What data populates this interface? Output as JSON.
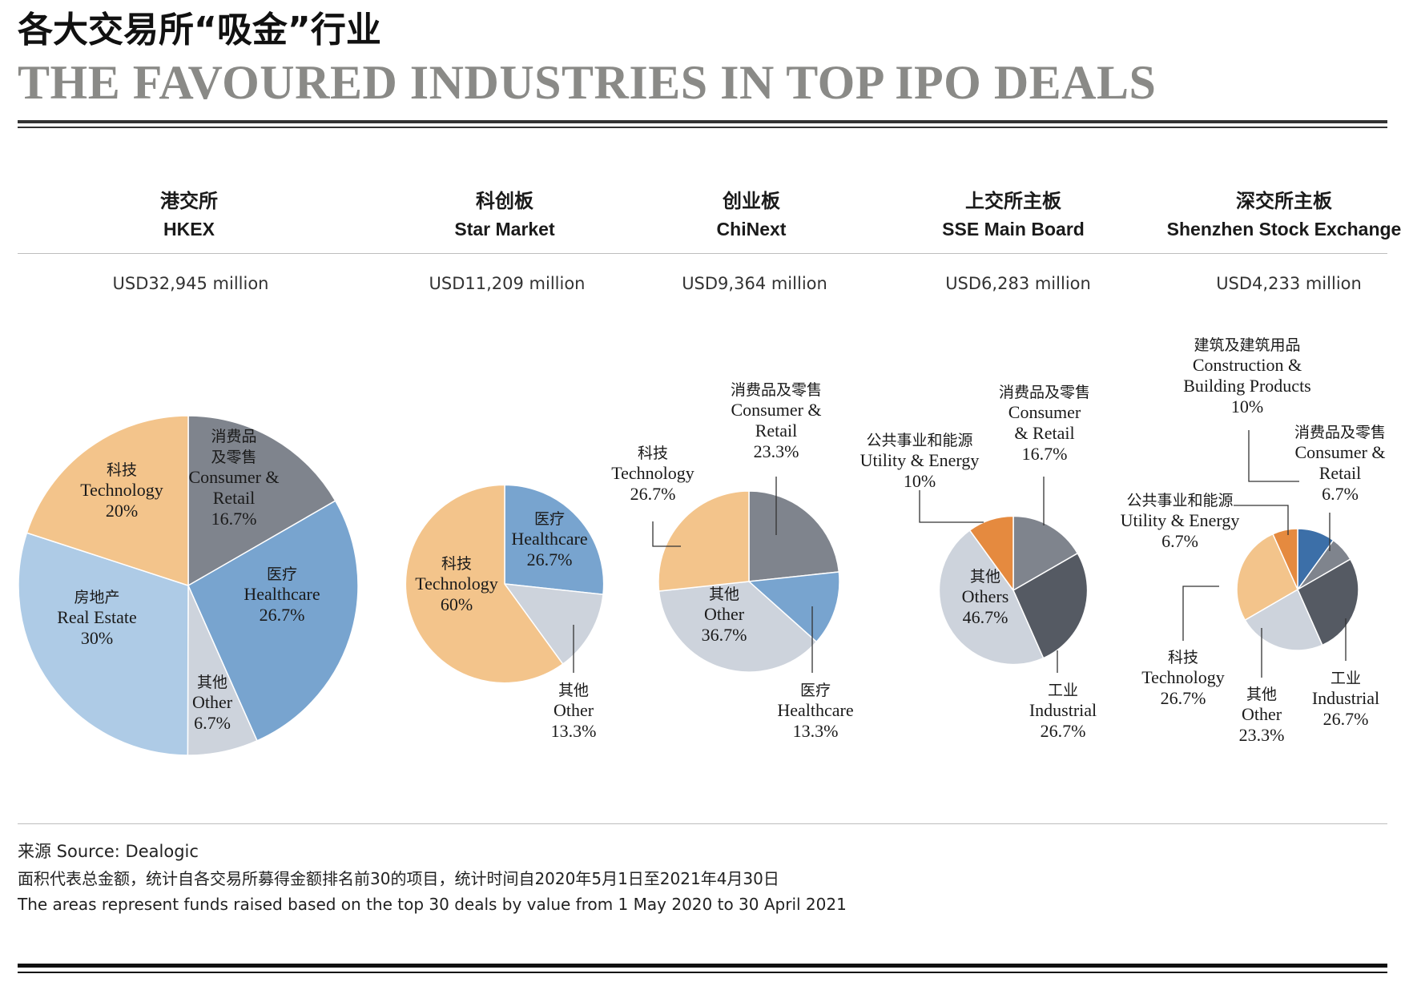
{
  "title_cn": "各大交易所“吸金”行业",
  "title_en": "THE FAVOURED INDUSTRIES IN TOP IPO DEALS",
  "colors": {
    "consumer_retail": "#7f848d",
    "healthcare": "#78a4cf",
    "other": "#cdd3dc",
    "real_estate": "#aecbe6",
    "technology": "#f3c48b",
    "industrial": "#555a63",
    "utility_energy": "#e58a3f",
    "construction": "#3c6fa8"
  },
  "chart_data": [
    {
      "type": "pie",
      "exchange_cn": "港交所",
      "exchange_en": "HKEX",
      "total": "USD32,945 million",
      "total_value_usd_million": 32945,
      "slices": [
        {
          "key": "consumer_retail",
          "name_cn": "消费品及零售",
          "name_en": "Consumer & Retail",
          "label": "16.7%",
          "value": 16.7
        },
        {
          "key": "healthcare",
          "name_cn": "医疗",
          "name_en": "Healthcare",
          "label": "26.7%",
          "value": 26.7
        },
        {
          "key": "other",
          "name_cn": "其他",
          "name_en": "Other",
          "label": "6.7%",
          "value": 6.7
        },
        {
          "key": "real_estate",
          "name_cn": "房地产",
          "name_en": "Real Estate",
          "label": "30%",
          "value": 30
        },
        {
          "key": "technology",
          "name_cn": "科技",
          "name_en": "Technology",
          "label": "20%",
          "value": 20
        }
      ]
    },
    {
      "type": "pie",
      "exchange_cn": "科创板",
      "exchange_en": "Star Market",
      "total": "USD11,209 million",
      "total_value_usd_million": 11209,
      "slices": [
        {
          "key": "healthcare",
          "name_cn": "医疗",
          "name_en": "Healthcare",
          "label": "26.7%",
          "value": 26.7
        },
        {
          "key": "other",
          "name_cn": "其他",
          "name_en": "Other",
          "label": "13.3%",
          "value": 13.3
        },
        {
          "key": "technology",
          "name_cn": "科技",
          "name_en": "Technology",
          "label": "60%",
          "value": 60
        }
      ]
    },
    {
      "type": "pie",
      "exchange_cn": "创业板",
      "exchange_en": "ChiNext",
      "total": "USD9,364 million",
      "total_value_usd_million": 9364,
      "slices": [
        {
          "key": "consumer_retail",
          "name_cn": "消费品及零售",
          "name_en": "Consumer & Retail",
          "label": "23.3%",
          "value": 23.3
        },
        {
          "key": "healthcare",
          "name_cn": "医疗",
          "name_en": "Healthcare",
          "label": "13.3%",
          "value": 13.3
        },
        {
          "key": "other",
          "name_cn": "其他",
          "name_en": "Other",
          "label": "36.7%",
          "value": 36.7
        },
        {
          "key": "technology",
          "name_cn": "科技",
          "name_en": "Technology",
          "label": "26.7%",
          "value": 26.7
        }
      ]
    },
    {
      "type": "pie",
      "exchange_cn": "上交所主板",
      "exchange_en": "SSE Main Board",
      "total": "USD6,283 million",
      "total_value_usd_million": 6283,
      "slices": [
        {
          "key": "consumer_retail",
          "name_cn": "消费品及零售",
          "name_en": "Consumer & Retail",
          "label": "16.7%",
          "value": 16.7
        },
        {
          "key": "industrial",
          "name_cn": "工业",
          "name_en": "Industrial",
          "label": "26.7%",
          "value": 26.7
        },
        {
          "key": "other",
          "name_cn": "其他",
          "name_en": "Others",
          "label": "46.7%",
          "value": 46.7
        },
        {
          "key": "utility_energy",
          "name_cn": "公共事业和能源",
          "name_en": "Utility & Energy",
          "label": "10%",
          "value": 10
        }
      ]
    },
    {
      "type": "pie",
      "exchange_cn": "深交所主板",
      "exchange_en": "Shenzhen Stock Exchange",
      "total": "USD4,233 million",
      "total_value_usd_million": 4233,
      "slices": [
        {
          "key": "construction",
          "name_cn": "建筑及建筑用品",
          "name_en": "Construction & Building Products",
          "label": "10%",
          "value": 10
        },
        {
          "key": "consumer_retail",
          "name_cn": "消费品及零售",
          "name_en": "Consumer & Retail",
          "label": "6.7%",
          "value": 6.7
        },
        {
          "key": "industrial",
          "name_cn": "工业",
          "name_en": "Industrial",
          "label": "26.7%",
          "value": 26.7
        },
        {
          "key": "other",
          "name_cn": "其他",
          "name_en": "Other",
          "label": "23.3%",
          "value": 23.3
        },
        {
          "key": "technology",
          "name_cn": "科技",
          "name_en": "Technology",
          "label": "26.7%",
          "value": 26.7
        },
        {
          "key": "utility_energy",
          "name_cn": "公共事业和能源",
          "name_en": "Utility & Energy",
          "label": "6.7%",
          "value": 6.7
        }
      ]
    }
  ],
  "footer": {
    "source": "来源 Source: Dealogic",
    "note_cn": "面积代表总金额，统计自各交易所募得金额排名前30的项目，统计时间自2020年5月1日至2021年4月30日",
    "note_en": "The areas represent funds raised based on the top 30 deals by value from 1 May 2020 to 30 April 2021"
  }
}
